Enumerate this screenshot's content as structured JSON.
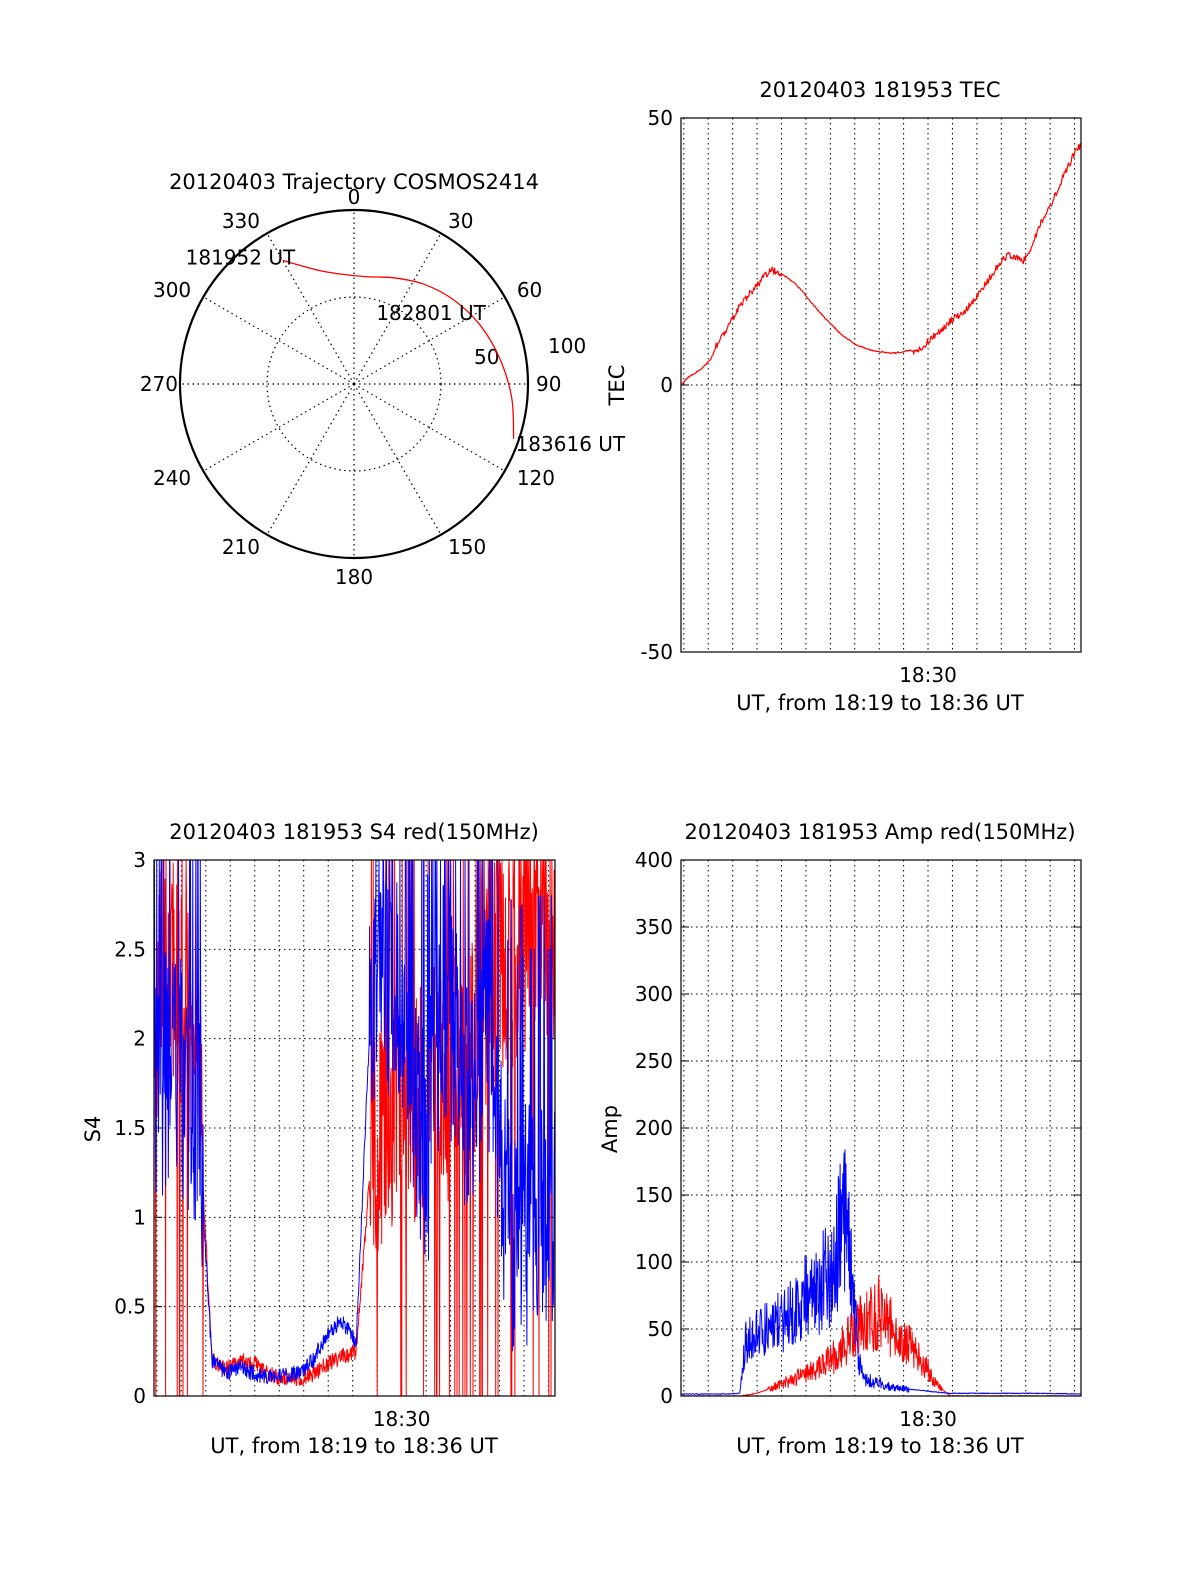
{
  "chart_data": [
    {
      "panel": "trajectory",
      "type": "polar",
      "title": "20120403 Trajectory COSMOS2414",
      "azimuth_labels": [
        "0",
        "30",
        "60",
        "90",
        "120",
        "150",
        "180",
        "210",
        "240",
        "270",
        "300",
        "330"
      ],
      "elevation_ring_labels": [
        "50",
        "100"
      ],
      "grid": true,
      "series": [
        {
          "color": "#ff0000",
          "points": [
            {
              "az": 330,
              "r": 82
            },
            {
              "az": 345,
              "r": 67
            },
            {
              "az": 5,
              "r": 62
            },
            {
              "az": 20,
              "r": 65
            },
            {
              "az": 35,
              "r": 70
            },
            {
              "az": 50,
              "r": 75
            },
            {
              "az": 65,
              "r": 80
            },
            {
              "az": 80,
              "r": 85
            },
            {
              "az": 95,
              "r": 91
            },
            {
              "az": 109,
              "r": 97
            }
          ]
        }
      ],
      "annotations": [
        {
          "text": "181952 UT",
          "az": 330,
          "r": 82
        },
        {
          "text": "182801 UT",
          "az": 55,
          "r": 76
        },
        {
          "text": "183616 UT",
          "az": 109,
          "r": 97
        }
      ]
    },
    {
      "panel": "tec",
      "type": "line",
      "title": "20120403 181953 TEC",
      "xlabel": "UT, from 18:19 to 18:36 UT",
      "ylabel": "TEC",
      "xlim": [
        18.3314,
        18.6044
      ],
      "ylim": [
        -50,
        50
      ],
      "x_ticks": [
        {
          "value": 18.5,
          "label": "18:30"
        }
      ],
      "y_ticks": [
        {
          "value": -50,
          "label": "-50"
        },
        {
          "value": 0,
          "label": "0"
        },
        {
          "value": 50,
          "label": "50"
        }
      ],
      "grid": "vertical",
      "series": [
        {
          "color": "#ff0000",
          "x": [
            18.3314,
            18.3365,
            18.3417,
            18.3469,
            18.3521,
            18.3573,
            18.3625,
            18.3677,
            18.3729,
            18.3781,
            18.3833,
            18.3885,
            18.3937,
            18.3989,
            18.4041,
            18.4093,
            18.4145,
            18.4197,
            18.4249,
            18.4301,
            18.4353,
            18.4405,
            18.4457,
            18.4509,
            18.4561,
            18.4613,
            18.4665,
            18.4717,
            18.4769,
            18.4821,
            18.4873,
            18.4925,
            18.4977,
            18.5029,
            18.5081,
            18.5133,
            18.5185,
            18.5237,
            18.5289,
            18.5341,
            18.5393,
            18.5445,
            18.5497,
            18.5549,
            18.5601,
            18.5653,
            18.5705,
            18.5757,
            18.5809,
            18.5861,
            18.5913,
            18.5965,
            18.6017,
            18.6044
          ],
          "values": [
            0,
            1.5,
            2.3,
            3.4,
            5,
            8.5,
            10.5,
            13,
            15.4,
            17,
            18.5,
            20.5,
            21.5,
            21,
            20,
            19,
            17.5,
            15.6,
            14,
            12.4,
            11,
            9.5,
            8.5,
            7.5,
            7,
            6.5,
            6.2,
            6.1,
            6,
            6.2,
            6.5,
            6.2,
            7.5,
            9,
            10,
            11.5,
            12.7,
            13.5,
            15,
            17,
            19,
            21,
            23,
            24.4,
            24,
            23.3,
            26,
            29.5,
            32.5,
            35,
            38.5,
            41.5,
            44.2,
            45
          ]
        }
      ]
    },
    {
      "panel": "s4",
      "type": "line",
      "title": "20120403 181953 S4 red(150MHz)",
      "xlabel": "UT, from 18:19 to 18:36 UT",
      "ylabel": "S4",
      "xlim": [
        18.3314,
        18.6044
      ],
      "ylim": [
        0,
        3
      ],
      "x_ticks": [
        {
          "value": 18.5,
          "label": "18:30"
        }
      ],
      "y_ticks": [
        {
          "value": 0,
          "label": "0"
        },
        {
          "value": 0.5,
          "label": "0.5"
        },
        {
          "value": 1,
          "label": "1"
        },
        {
          "value": 1.5,
          "label": "1.5"
        },
        {
          "value": 2,
          "label": "2"
        },
        {
          "value": 2.5,
          "label": "2.5"
        },
        {
          "value": 3,
          "label": "3"
        }
      ],
      "grid": true,
      "series": [
        {
          "color": "#ff0000",
          "x": [
            18.3314,
            18.3413,
            18.3511,
            18.3609,
            18.3708,
            18.3806,
            18.3904,
            18.4003,
            18.4101,
            18.4199,
            18.4297,
            18.4396,
            18.4494,
            18.4592,
            18.4691,
            18.4789,
            18.4887,
            18.4986,
            18.5084,
            18.5182,
            18.528,
            18.5379,
            18.5477,
            18.5575,
            18.5674,
            18.5772,
            18.587,
            18.5969,
            18.6044
          ],
          "values": [
            2.2,
            2.4,
            2.2,
            1.8,
            0.2,
            0.15,
            0.2,
            0.18,
            0.12,
            0.1,
            0.09,
            0.12,
            0.18,
            0.22,
            0.25,
            1.3,
            1.55,
            1.6,
            1.55,
            1.7,
            1.7,
            1.8,
            2.0,
            2.3,
            2.5,
            2.5,
            2.6,
            2.5,
            2.5
          ]
        },
        {
          "color": "#0000ff",
          "x": [
            18.3314,
            18.3413,
            18.3511,
            18.3609,
            18.3708,
            18.3806,
            18.3904,
            18.4003,
            18.4101,
            18.4199,
            18.4297,
            18.4396,
            18.4494,
            18.4592,
            18.4691,
            18.4789,
            18.4887,
            18.4986,
            18.5084,
            18.5182,
            18.528,
            18.5379,
            18.5477,
            18.5575,
            18.5674,
            18.5772,
            18.587,
            18.5969,
            18.6044
          ],
          "values": [
            1.6,
            1.9,
            1.8,
            1.6,
            0.2,
            0.13,
            0.16,
            0.12,
            0.1,
            0.11,
            0.13,
            0.2,
            0.35,
            0.42,
            0.3,
            2.2,
            2.4,
            2.2,
            1.7,
            1.4,
            2.3,
            2.0,
            1.5,
            2.2,
            1.2,
            0.9,
            1.0,
            1.0,
            1.0
          ]
        }
      ]
    },
    {
      "panel": "amp",
      "type": "line",
      "title": "20120403 181953 Amp red(150MHz)",
      "xlabel": "UT, from 18:19 to 18:36 UT",
      "ylabel": "Amp",
      "xlim": [
        18.3314,
        18.6044
      ],
      "ylim": [
        0,
        400
      ],
      "x_ticks": [
        {
          "value": 18.5,
          "label": "18:30"
        }
      ],
      "y_ticks": [
        {
          "value": 0,
          "label": "0"
        },
        {
          "value": 50,
          "label": "50"
        },
        {
          "value": 100,
          "label": "100"
        },
        {
          "value": 150,
          "label": "150"
        },
        {
          "value": 200,
          "label": "200"
        },
        {
          "value": 250,
          "label": "250"
        },
        {
          "value": 300,
          "label": "300"
        },
        {
          "value": 350,
          "label": "350"
        },
        {
          "value": 400,
          "label": "400"
        }
      ],
      "grid": true,
      "series": [
        {
          "color": "#ff0000",
          "x": [
            18.3314,
            18.3725,
            18.3829,
            18.3933,
            18.4037,
            18.4141,
            18.4245,
            18.4349,
            18.4453,
            18.4557,
            18.4661,
            18.4765,
            18.4869,
            18.4973,
            18.5044,
            18.5151,
            18.6044
          ],
          "values": [
            0,
            0,
            2,
            6,
            11,
            15,
            20,
            28,
            42,
            55,
            62,
            50,
            38,
            25,
            10,
            0,
            0
          ]
        },
        {
          "color": "#0000ff",
          "x": [
            18.3314,
            18.3469,
            18.3625,
            18.3715,
            18.3755,
            18.3829,
            18.3933,
            18.4037,
            18.4141,
            18.4245,
            18.4349,
            18.4428,
            18.4453,
            18.4526,
            18.4557,
            18.4661,
            18.4765,
            18.4869,
            18.4973,
            18.5044,
            18.5151,
            18.5461,
            18.5773,
            18.6044
          ],
          "values": [
            1.5,
            1.5,
            1.5,
            2,
            40,
            45,
            52,
            60,
            72,
            80,
            95,
            140,
            120,
            30,
            12,
            10,
            6,
            5,
            4,
            3,
            2,
            2,
            2,
            1.5
          ]
        }
      ]
    }
  ]
}
